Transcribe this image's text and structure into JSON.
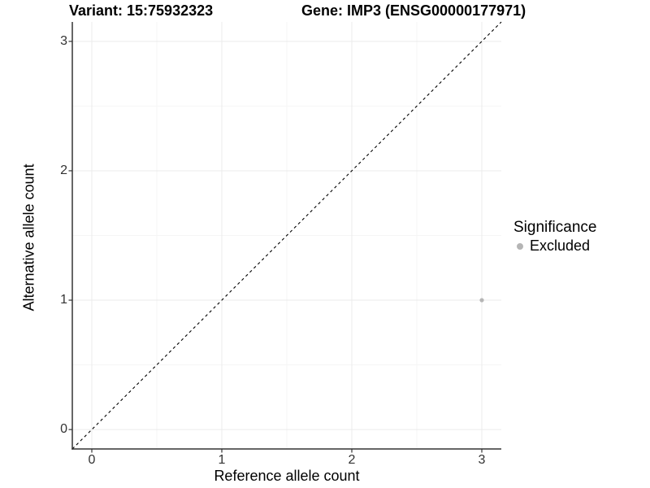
{
  "header": {
    "variant_title": "Variant: 15:75932323",
    "gene_title": "Gene: IMP3 (ENSG00000177971)"
  },
  "axes": {
    "x": {
      "label": "Reference allele count",
      "tick_labels": [
        "0",
        "1",
        "2",
        "3"
      ]
    },
    "y": {
      "label": "Alternative allele count",
      "tick_labels": [
        "0",
        "1",
        "2",
        "3"
      ]
    }
  },
  "legend": {
    "title": "Significance",
    "entries": [
      {
        "label": "Excluded",
        "color": "#b5b5b5"
      }
    ]
  },
  "colors": {
    "background": "#ffffff",
    "axis_line": "#333333",
    "tick_mark": "#333333",
    "grid_major": "#ebebeb",
    "grid_minor": "#f5f5f5",
    "identity_line": "#000000",
    "point": "#b5b5b5",
    "title_text": "#000000",
    "tick_label_text": "#333333"
  },
  "chart_data": {
    "type": "scatter",
    "title_left": "Variant: 15:75932323",
    "title_right": "Gene: IMP3 (ENSG00000177971)",
    "xlabel": "Reference allele count",
    "ylabel": "Alternative allele count",
    "xlim": [
      -0.15,
      3.15
    ],
    "ylim": [
      -0.15,
      3.15
    ],
    "xticks": [
      0,
      1,
      2,
      3
    ],
    "yticks": [
      0,
      1,
      2,
      3
    ],
    "grid": "major-and-minor",
    "legend_position": "right",
    "series": [
      {
        "name": "Excluded",
        "color": "#b5b5b5",
        "point_radius": 2.6,
        "points": [
          {
            "x": 3,
            "y": 1
          }
        ]
      }
    ],
    "reference_line": {
      "kind": "identity",
      "x1": -0.15,
      "y1": -0.15,
      "x2": 3.15,
      "y2": 3.15,
      "style": "dashed",
      "color": "#000000"
    }
  }
}
